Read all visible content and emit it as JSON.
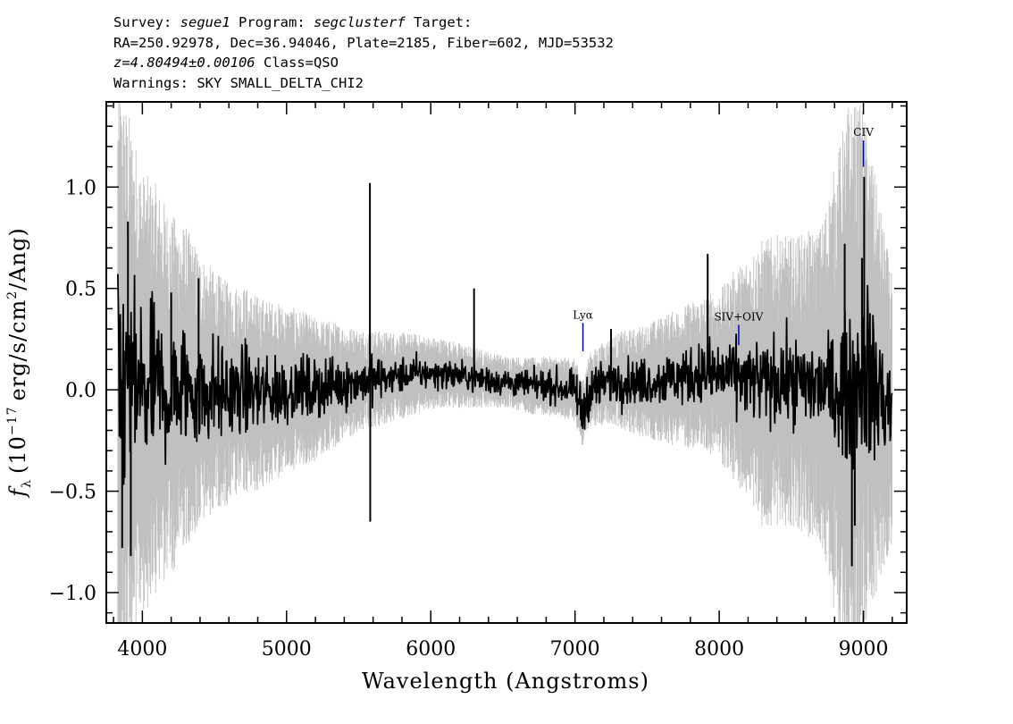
{
  "header": {
    "line1": {
      "survey_label": "Survey:",
      "survey": "segue1",
      "program_label": "Program:",
      "program": "segclusterf",
      "target_label": "Target:"
    },
    "line2": "RA=250.92978, Dec=36.94046, Plate=2185, Fiber=602, MJD=53532",
    "line3": {
      "redshift": "z=4.80494±0.00106",
      "class": "Class=QSO"
    },
    "line4": "Warnings: SKY SMALL_DELTA_CHI2"
  },
  "colors": {
    "flux": "#000000",
    "error": "#c0c0c0",
    "line_marker": "#0000cc",
    "axis": "#000000"
  },
  "chart_data": {
    "type": "line",
    "title": "",
    "xlabel": "Wavelength (Angstroms)",
    "ylabel": "f_λ (10^-17 erg/s/cm^2/Ang)",
    "ylabel_parts": {
      "f": "f",
      "lambda": "λ",
      "open": "(10",
      "exp": "−17",
      "mid": "erg/s/cm",
      "sq": "2",
      "close": "/Ang)"
    },
    "xlim": [
      3750,
      9300
    ],
    "ylim": [
      -1.15,
      1.42
    ],
    "xticks": [
      4000,
      5000,
      6000,
      7000,
      8000,
      9000
    ],
    "yticks": [
      1.0,
      0.5,
      0.0,
      -0.5,
      -1.0
    ],
    "ytick_labels": [
      "1.0",
      "0.5",
      "0.0",
      "−0.5",
      "−1.0"
    ],
    "grid": false,
    "series": [
      {
        "name": "flux",
        "style": "noisy spectrum",
        "x": [
          3830,
          3900,
          4000,
          4100,
          4200,
          4300,
          4400,
          4500,
          4600,
          4700,
          4800,
          4900,
          5000,
          5100,
          5200,
          5300,
          5400,
          5500,
          5600,
          5700,
          5800,
          5900,
          6000,
          6100,
          6200,
          6300,
          6400,
          6500,
          6600,
          6700,
          6800,
          6900,
          7000,
          7050,
          7100,
          7200,
          7300,
          7400,
          7500,
          7600,
          7700,
          7800,
          7900,
          8000,
          8100,
          8200,
          8300,
          8400,
          8500,
          8600,
          8700,
          8800,
          8900,
          9000,
          9100,
          9200
        ],
        "y": [
          0.0,
          0.02,
          -0.02,
          0.01,
          -0.03,
          0.02,
          -0.01,
          0.0,
          -0.02,
          0.0,
          -0.02,
          -0.01,
          0.0,
          0.01,
          0.0,
          0.02,
          0.03,
          0.04,
          0.05,
          0.06,
          0.07,
          0.08,
          0.08,
          0.08,
          0.07,
          0.06,
          0.05,
          0.04,
          0.03,
          0.02,
          0.02,
          0.01,
          0.0,
          -0.12,
          0.0,
          0.03,
          0.05,
          0.04,
          0.04,
          0.05,
          0.06,
          0.07,
          0.08,
          0.07,
          0.07,
          0.05,
          0.03,
          0.05,
          0.04,
          0.03,
          0.02,
          0.0,
          0.0,
          0.1,
          0.0,
          -0.1
        ],
        "scatter": [
          0.35,
          0.33,
          0.3,
          0.27,
          0.25,
          0.22,
          0.2,
          0.18,
          0.16,
          0.15,
          0.14,
          0.13,
          0.12,
          0.11,
          0.1,
          0.1,
          0.09,
          0.08,
          0.08,
          0.07,
          0.06,
          0.06,
          0.05,
          0.05,
          0.05,
          0.05,
          0.05,
          0.05,
          0.05,
          0.05,
          0.05,
          0.06,
          0.06,
          0.1,
          0.08,
          0.08,
          0.08,
          0.08,
          0.08,
          0.09,
          0.1,
          0.1,
          0.12,
          0.12,
          0.12,
          0.13,
          0.15,
          0.15,
          0.15,
          0.16,
          0.17,
          0.2,
          0.25,
          0.3,
          0.3,
          0.2
        ],
        "spikes": [
          {
            "x": 5578,
            "y": 1.02
          },
          {
            "x": 5580,
            "y": -0.65
          },
          {
            "x": 6300,
            "y": 0.5
          },
          {
            "x": 7250,
            "y": 0.3
          },
          {
            "x": 7920,
            "y": 0.67
          },
          {
            "x": 8990,
            "y": 0.65
          },
          {
            "x": 9005,
            "y": 1.05
          },
          {
            "x": 8920,
            "y": -0.87
          },
          {
            "x": 3860,
            "y": -0.78
          },
          {
            "x": 3900,
            "y": 0.83
          },
          {
            "x": 3920,
            "y": -0.82
          },
          {
            "x": 4200,
            "y": 0.48
          },
          {
            "x": 4390,
            "y": 0.55
          },
          {
            "x": 8870,
            "y": 0.72
          },
          {
            "x": 8940,
            "y": -0.67
          }
        ]
      },
      {
        "name": "error",
        "style": "grey noise envelope",
        "x": [
          3830,
          4000,
          4500,
          5000,
          5500,
          6000,
          6500,
          7000,
          7500,
          8000,
          8300,
          8500,
          8700,
          8900,
          9000,
          9200
        ],
        "half_width": [
          1.2,
          0.85,
          0.45,
          0.32,
          0.2,
          0.14,
          0.1,
          0.12,
          0.22,
          0.32,
          0.55,
          0.55,
          0.6,
          1.1,
          1.0,
          0.5
        ]
      }
    ],
    "line_markers": [
      {
        "label": "Lyα",
        "x": 7055,
        "y_top": 0.33,
        "y_bottom": 0.19
      },
      {
        "label": "SIV+OIV",
        "x": 8135,
        "y_top": 0.32,
        "y_bottom": 0.22
      },
      {
        "label": "CIV",
        "x": 9000,
        "y_top": 1.23,
        "y_bottom": 1.1
      }
    ]
  }
}
